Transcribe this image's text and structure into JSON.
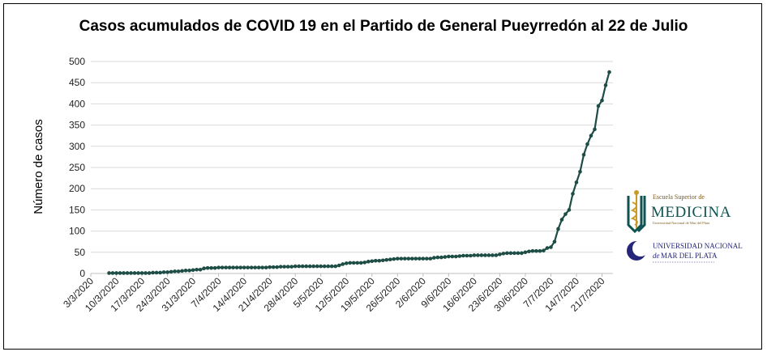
{
  "chart_data": {
    "type": "line",
    "title": "Casos acumulados  de COVID 19 en el Partido de General Pueyrredón al 22 de Julio",
    "xlabel": "",
    "ylabel": "Número de casos",
    "ylim": [
      0,
      500
    ],
    "yticks": [
      0,
      50,
      100,
      150,
      200,
      250,
      300,
      350,
      400,
      450,
      500
    ],
    "grid": true,
    "legend": "none",
    "x_tick_labels": [
      "3/3/2020",
      "10/3/2020",
      "17/3/2020",
      "24/3/2020",
      "31/3/2020",
      "7/4/2020",
      "14/4/2020",
      "21/4/2020",
      "28/4/2020",
      "5/5/2020",
      "12/5/2020",
      "19/5/2020",
      "26/5/2020",
      "2/6/2020",
      "9/6/2020",
      "16/6/2020",
      "23/6/2020",
      "30/6/2020",
      "7/7/2020",
      "14/7/2020",
      "21/7/2020"
    ],
    "series": [
      {
        "color": "#1d4d45",
        "points": [
          [
            "2020-03-08",
            1
          ],
          [
            "2020-03-09",
            1
          ],
          [
            "2020-03-10",
            1
          ],
          [
            "2020-03-11",
            1
          ],
          [
            "2020-03-12",
            1
          ],
          [
            "2020-03-13",
            1
          ],
          [
            "2020-03-14",
            1
          ],
          [
            "2020-03-15",
            1
          ],
          [
            "2020-03-16",
            1
          ],
          [
            "2020-03-17",
            1
          ],
          [
            "2020-03-18",
            1
          ],
          [
            "2020-03-19",
            1
          ],
          [
            "2020-03-20",
            2
          ],
          [
            "2020-03-21",
            2
          ],
          [
            "2020-03-22",
            2
          ],
          [
            "2020-03-23",
            3
          ],
          [
            "2020-03-24",
            3
          ],
          [
            "2020-03-25",
            4
          ],
          [
            "2020-03-26",
            5
          ],
          [
            "2020-03-27",
            5
          ],
          [
            "2020-03-28",
            6
          ],
          [
            "2020-03-29",
            7
          ],
          [
            "2020-03-30",
            7
          ],
          [
            "2020-03-31",
            8
          ],
          [
            "2020-04-01",
            9
          ],
          [
            "2020-04-02",
            9
          ],
          [
            "2020-04-03",
            12
          ],
          [
            "2020-04-04",
            13
          ],
          [
            "2020-04-05",
            13
          ],
          [
            "2020-04-06",
            13
          ],
          [
            "2020-04-07",
            14
          ],
          [
            "2020-04-08",
            14
          ],
          [
            "2020-04-09",
            14
          ],
          [
            "2020-04-10",
            14
          ],
          [
            "2020-04-11",
            14
          ],
          [
            "2020-04-12",
            14
          ],
          [
            "2020-04-13",
            14
          ],
          [
            "2020-04-14",
            14
          ],
          [
            "2020-04-15",
            14
          ],
          [
            "2020-04-16",
            14
          ],
          [
            "2020-04-17",
            14
          ],
          [
            "2020-04-18",
            14
          ],
          [
            "2020-04-19",
            14
          ],
          [
            "2020-04-20",
            14
          ],
          [
            "2020-04-21",
            15
          ],
          [
            "2020-04-22",
            15
          ],
          [
            "2020-04-23",
            15
          ],
          [
            "2020-04-24",
            16
          ],
          [
            "2020-04-25",
            16
          ],
          [
            "2020-04-26",
            16
          ],
          [
            "2020-04-27",
            16
          ],
          [
            "2020-04-28",
            17
          ],
          [
            "2020-04-29",
            17
          ],
          [
            "2020-04-30",
            17
          ],
          [
            "2020-05-01",
            17
          ],
          [
            "2020-05-02",
            17
          ],
          [
            "2020-05-03",
            17
          ],
          [
            "2020-05-04",
            17
          ],
          [
            "2020-05-05",
            17
          ],
          [
            "2020-05-06",
            17
          ],
          [
            "2020-05-07",
            17
          ],
          [
            "2020-05-08",
            17
          ],
          [
            "2020-05-09",
            17
          ],
          [
            "2020-05-10",
            19
          ],
          [
            "2020-05-11",
            22
          ],
          [
            "2020-05-12",
            24
          ],
          [
            "2020-05-13",
            25
          ],
          [
            "2020-05-14",
            25
          ],
          [
            "2020-05-15",
            25
          ],
          [
            "2020-05-16",
            25
          ],
          [
            "2020-05-17",
            26
          ],
          [
            "2020-05-18",
            28
          ],
          [
            "2020-05-19",
            29
          ],
          [
            "2020-05-20",
            30
          ],
          [
            "2020-05-21",
            30
          ],
          [
            "2020-05-22",
            31
          ],
          [
            "2020-05-23",
            32
          ],
          [
            "2020-05-24",
            33
          ],
          [
            "2020-05-25",
            34
          ],
          [
            "2020-05-26",
            35
          ],
          [
            "2020-05-27",
            35
          ],
          [
            "2020-05-28",
            35
          ],
          [
            "2020-05-29",
            35
          ],
          [
            "2020-05-30",
            35
          ],
          [
            "2020-05-31",
            35
          ],
          [
            "2020-06-01",
            35
          ],
          [
            "2020-06-02",
            35
          ],
          [
            "2020-06-03",
            35
          ],
          [
            "2020-06-04",
            35
          ],
          [
            "2020-06-05",
            37
          ],
          [
            "2020-06-06",
            38
          ],
          [
            "2020-06-07",
            38
          ],
          [
            "2020-06-08",
            39
          ],
          [
            "2020-06-09",
            40
          ],
          [
            "2020-06-10",
            40
          ],
          [
            "2020-06-11",
            40
          ],
          [
            "2020-06-12",
            41
          ],
          [
            "2020-06-13",
            42
          ],
          [
            "2020-06-14",
            42
          ],
          [
            "2020-06-15",
            42
          ],
          [
            "2020-06-16",
            43
          ],
          [
            "2020-06-17",
            43
          ],
          [
            "2020-06-18",
            43
          ],
          [
            "2020-06-19",
            43
          ],
          [
            "2020-06-20",
            43
          ],
          [
            "2020-06-21",
            43
          ],
          [
            "2020-06-22",
            43
          ],
          [
            "2020-06-23",
            45
          ],
          [
            "2020-06-24",
            47
          ],
          [
            "2020-06-25",
            48
          ],
          [
            "2020-06-26",
            48
          ],
          [
            "2020-06-27",
            48
          ],
          [
            "2020-06-28",
            48
          ],
          [
            "2020-06-29",
            48
          ],
          [
            "2020-06-30",
            50
          ],
          [
            "2020-07-01",
            52
          ],
          [
            "2020-07-02",
            53
          ],
          [
            "2020-07-03",
            53
          ],
          [
            "2020-07-04",
            53
          ],
          [
            "2020-07-05",
            54
          ],
          [
            "2020-07-06",
            60
          ],
          [
            "2020-07-07",
            62
          ],
          [
            "2020-07-08",
            75
          ],
          [
            "2020-07-09",
            105
          ],
          [
            "2020-07-10",
            127
          ],
          [
            "2020-07-11",
            140
          ],
          [
            "2020-07-12",
            150
          ],
          [
            "2020-07-13",
            188
          ],
          [
            "2020-07-14",
            215
          ],
          [
            "2020-07-15",
            240
          ],
          [
            "2020-07-16",
            280
          ],
          [
            "2020-07-17",
            305
          ],
          [
            "2020-07-18",
            325
          ],
          [
            "2020-07-19",
            340
          ],
          [
            "2020-07-20",
            395
          ],
          [
            "2020-07-21",
            408
          ],
          [
            "2020-07-22",
            444
          ],
          [
            "2020-07-23",
            475
          ]
        ]
      }
    ]
  },
  "logos": {
    "medicina": {
      "line1": "Escuela Superior de",
      "line2": "MEDICINA",
      "line3": "Universidad Nacional de Mar del Plata",
      "icon": "caduceus-shield-icon",
      "colors": {
        "primary": "#0f5350",
        "accent": "#c79a2a"
      }
    },
    "universidad": {
      "line1": "UNIVERSIDAD NACIONAL",
      "line2": "de",
      "line3": "MAR DEL PLATA",
      "icon": "crescent-moon-icon",
      "colors": {
        "primary": "#25257a"
      }
    }
  }
}
